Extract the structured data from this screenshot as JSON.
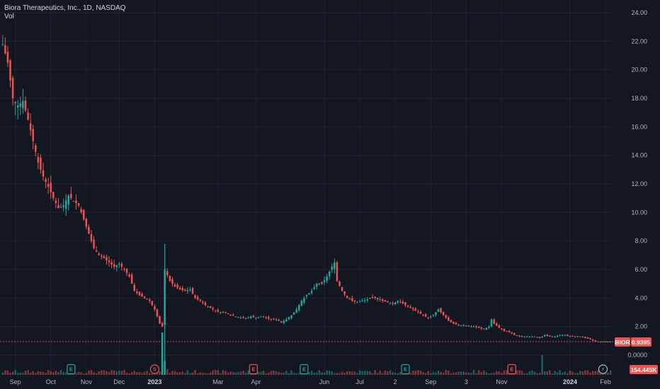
{
  "legend": {
    "title": "Biora Therapeutics, Inc., 1D, NASDAQ",
    "volume_label": "Vol"
  },
  "colors": {
    "background": "#131722",
    "grid": "#1f2431",
    "up": "#26a69a",
    "down": "#ef5350",
    "price_line": "#ef5350",
    "event_earnings_up": "#26a69a",
    "event_earnings_down": "#ef5350"
  },
  "price_badge": {
    "symbol": "BIOR",
    "value": "0.9395"
  },
  "volume_badge": {
    "value": "154.445K"
  },
  "events": [
    {
      "type": "earnings",
      "label": "E",
      "color": "up",
      "date_index": 27
    },
    {
      "type": "split",
      "label": "S",
      "color": "down",
      "date_index": 60
    },
    {
      "type": "earnings",
      "label": "E",
      "color": "down",
      "date_index": 99
    },
    {
      "type": "earnings",
      "label": "E",
      "color": "up",
      "date_index": 119
    },
    {
      "type": "earnings",
      "label": "E",
      "color": "up",
      "date_index": 159
    },
    {
      "type": "earnings",
      "label": "E",
      "color": "down",
      "date_index": 201
    },
    {
      "type": "flash",
      "label": "⚡",
      "color": "neutral",
      "date_index": 237
    }
  ],
  "chart_data": {
    "type": "candlestick",
    "title": "Biora Therapeutics, Inc., 1D, NASDAQ",
    "y_ticks": [
      "24.00",
      "22.00",
      "20.00",
      "18.00",
      "16.00",
      "14.00",
      "12.00",
      "10.00",
      "8.00",
      "6.00",
      "4.00",
      "2.00",
      "0.0000"
    ],
    "ylim": [
      0,
      24
    ],
    "x_ticks": [
      {
        "label": "Sep",
        "idx": 5
      },
      {
        "label": "Oct",
        "idx": 19
      },
      {
        "label": "Nov",
        "idx": 33
      },
      {
        "label": "Dec",
        "idx": 46
      },
      {
        "label": "2023",
        "idx": 60,
        "bold": true
      },
      {
        "label": "Mar",
        "idx": 85
      },
      {
        "label": "Apr",
        "idx": 100
      },
      {
        "label": "Jun",
        "idx": 127
      },
      {
        "label": "Jul",
        "idx": 141
      },
      {
        "label": "2",
        "idx": 155
      },
      {
        "label": "Sep",
        "idx": 169
      },
      {
        "label": "3",
        "idx": 183
      },
      {
        "label": "Nov",
        "idx": 197
      },
      {
        "label": "2024",
        "idx": 224,
        "bold": true
      },
      {
        "label": "Feb",
        "idx": 238
      }
    ],
    "last_price": 0.9395,
    "volume_last": "154.445K",
    "series": [
      {
        "name": "BIOR",
        "close_path": [
          [
            0,
            21.8
          ],
          [
            2,
            20.5
          ],
          [
            4,
            18.0
          ],
          [
            6,
            17.5
          ],
          [
            8,
            17.8
          ],
          [
            10,
            16.5
          ],
          [
            12,
            15.0
          ],
          [
            14,
            13.5
          ],
          [
            16,
            12.5
          ],
          [
            18,
            11.8
          ],
          [
            20,
            11.0
          ],
          [
            22,
            10.3
          ],
          [
            24,
            10.5
          ],
          [
            26,
            11.2
          ],
          [
            28,
            10.8
          ],
          [
            30,
            10.5
          ],
          [
            32,
            9.5
          ],
          [
            34,
            8.5
          ],
          [
            36,
            7.5
          ],
          [
            38,
            7.0
          ],
          [
            40,
            6.8
          ],
          [
            42,
            6.5
          ],
          [
            44,
            6.2
          ],
          [
            46,
            6.4
          ],
          [
            48,
            6.0
          ],
          [
            50,
            5.5
          ],
          [
            52,
            4.5
          ],
          [
            54,
            4.2
          ],
          [
            56,
            4.0
          ],
          [
            58,
            3.8
          ],
          [
            60,
            3.2
          ],
          [
            62,
            2.2
          ],
          [
            63,
            2.0
          ],
          [
            64,
            6.0
          ],
          [
            66,
            5.2
          ],
          [
            68,
            4.8
          ],
          [
            70,
            4.6
          ],
          [
            72,
            4.5
          ],
          [
            74,
            4.6
          ],
          [
            76,
            4.0
          ],
          [
            78,
            3.8
          ],
          [
            80,
            3.5
          ],
          [
            82,
            3.3
          ],
          [
            84,
            3.1
          ],
          [
            86,
            3.0
          ],
          [
            88,
            3.0
          ],
          [
            90,
            2.8
          ],
          [
            92,
            2.7
          ],
          [
            94,
            2.6
          ],
          [
            96,
            2.6
          ],
          [
            98,
            2.7
          ],
          [
            100,
            2.6
          ],
          [
            102,
            2.7
          ],
          [
            104,
            2.6
          ],
          [
            106,
            2.5
          ],
          [
            108,
            2.5
          ],
          [
            110,
            2.3
          ],
          [
            112,
            2.5
          ],
          [
            114,
            2.8
          ],
          [
            116,
            3.2
          ],
          [
            118,
            3.8
          ],
          [
            120,
            4.2
          ],
          [
            122,
            4.5
          ],
          [
            124,
            5.0
          ],
          [
            126,
            5.0
          ],
          [
            128,
            5.5
          ],
          [
            130,
            6.2
          ],
          [
            131,
            6.5
          ],
          [
            132,
            5.2
          ],
          [
            134,
            4.5
          ],
          [
            136,
            4.0
          ],
          [
            138,
            3.8
          ],
          [
            140,
            3.7
          ],
          [
            142,
            3.8
          ],
          [
            144,
            3.9
          ],
          [
            146,
            4.0
          ],
          [
            148,
            4.0
          ],
          [
            150,
            3.8
          ],
          [
            152,
            3.7
          ],
          [
            154,
            3.6
          ],
          [
            156,
            3.8
          ],
          [
            158,
            3.6
          ],
          [
            160,
            3.4
          ],
          [
            162,
            3.2
          ],
          [
            164,
            3.0
          ],
          [
            166,
            2.8
          ],
          [
            168,
            2.6
          ],
          [
            170,
            2.8
          ],
          [
            172,
            3.2
          ],
          [
            174,
            2.8
          ],
          [
            176,
            2.4
          ],
          [
            178,
            2.2
          ],
          [
            180,
            2.1
          ],
          [
            182,
            2.1
          ],
          [
            184,
            2.0
          ],
          [
            186,
            2.0
          ],
          [
            188,
            1.9
          ],
          [
            190,
            1.8
          ],
          [
            192,
            2.0
          ],
          [
            193,
            2.5
          ],
          [
            194,
            2.2
          ],
          [
            196,
            1.9
          ],
          [
            198,
            1.7
          ],
          [
            200,
            1.6
          ],
          [
            202,
            1.4
          ],
          [
            204,
            1.3
          ],
          [
            206,
            1.3
          ],
          [
            208,
            1.3
          ],
          [
            210,
            1.3
          ],
          [
            212,
            1.2
          ],
          [
            214,
            1.4
          ],
          [
            216,
            1.3
          ],
          [
            218,
            1.3
          ],
          [
            220,
            1.4
          ],
          [
            222,
            1.4
          ],
          [
            224,
            1.3
          ],
          [
            226,
            1.3
          ],
          [
            228,
            1.3
          ],
          [
            230,
            1.2
          ],
          [
            232,
            1.1
          ],
          [
            234,
            0.95
          ],
          [
            236,
            0.93
          ],
          [
            238,
            0.94
          ],
          [
            239,
            0.9395
          ]
        ]
      }
    ]
  }
}
